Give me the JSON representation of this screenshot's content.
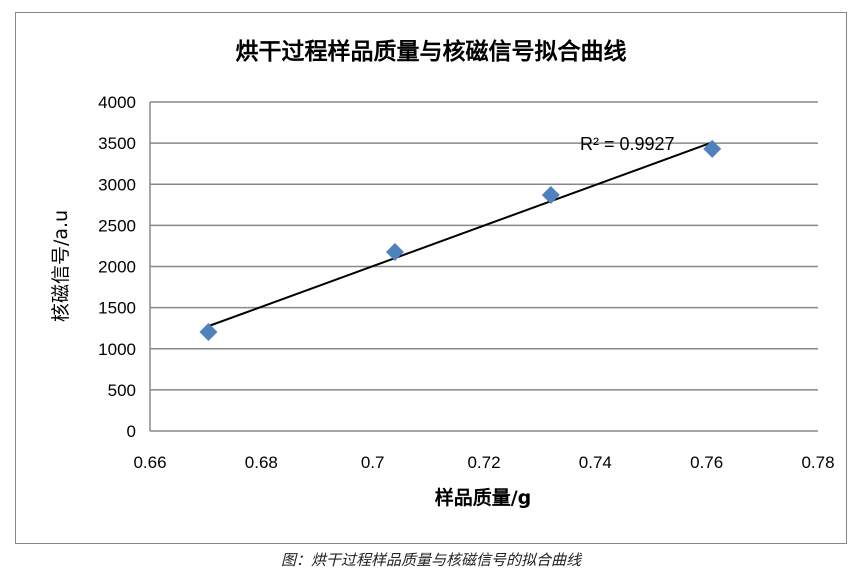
{
  "chart_data": {
    "type": "scatter",
    "title": "烘干过程样品质量与核磁信号拟合曲线",
    "xlabel": "样品质量/g",
    "ylabel": "核磁信号/a.u",
    "xlim": [
      0.66,
      0.78
    ],
    "ylim": [
      0,
      4000
    ],
    "xticks": [
      "0.66",
      "0.68",
      "0.7",
      "0.72",
      "0.74",
      "0.76",
      "0.78"
    ],
    "yticks": [
      "0",
      "500",
      "1000",
      "1500",
      "2000",
      "2500",
      "3000",
      "3500",
      "4000"
    ],
    "grid": "horizontal",
    "points": [
      {
        "x": 0.6705,
        "y": 1204
      },
      {
        "x": 0.704,
        "y": 2176
      },
      {
        "x": 0.732,
        "y": 2870
      },
      {
        "x": 0.761,
        "y": 3430
      }
    ],
    "trendline": {
      "type": "linear",
      "label": "R² = 0.9927"
    },
    "marker_color": "#4f81bd",
    "line_color": "#000000"
  },
  "caption": "图：烘干过程样品质量与核磁信号的拟合曲线"
}
